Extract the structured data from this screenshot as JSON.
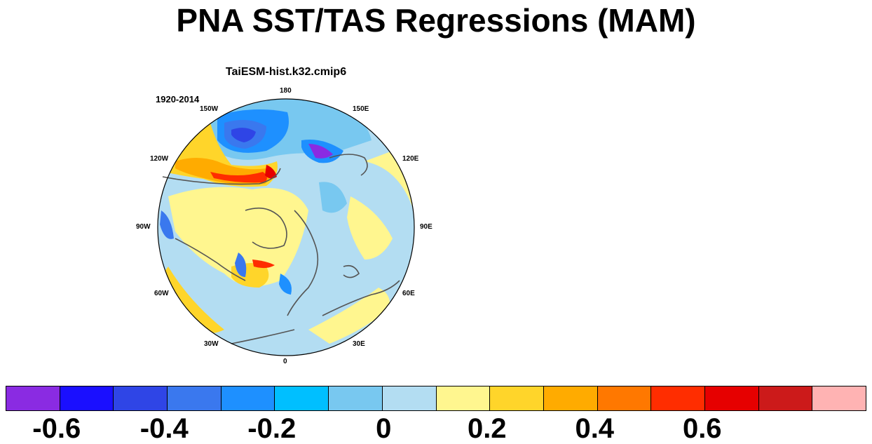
{
  "figure": {
    "title": "PNA SST/TAS Regressions (MAM)",
    "model": "TaiESM-hist.k32.cmip6",
    "period": "1920-2014"
  },
  "map": {
    "projection": "north-polar-stereographic",
    "longitude_labels": [
      "180",
      "150E",
      "120E",
      "90E",
      "60E",
      "30E",
      "0",
      "30W",
      "60W",
      "90W",
      "120W",
      "150W"
    ]
  },
  "colorbar": {
    "colors": [
      "#8a2be2",
      "#1a0fff",
      "#2f45e6",
      "#3a78ee",
      "#1e90ff",
      "#00bfff",
      "#78c8f0",
      "#b3ddf2",
      "#fff68f",
      "#ffd52a",
      "#ffab00",
      "#ff7800",
      "#ff2d00",
      "#e60000",
      "#cc1a1a",
      "#ffb3b3"
    ],
    "labels": [
      "-0.6",
      "-0.4",
      "-0.2",
      "0",
      "0.2",
      "0.4",
      "0.6"
    ]
  }
}
